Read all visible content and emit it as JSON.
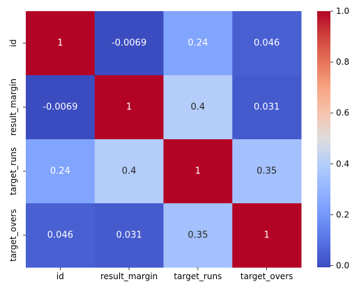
{
  "chart_data": {
    "type": "heatmap",
    "x_categories": [
      "id",
      "result_margin",
      "target_runs",
      "target_overs"
    ],
    "y_categories": [
      "id",
      "result_margin",
      "target_runs",
      "target_overs"
    ],
    "matrix": [
      [
        1,
        -0.0069,
        0.24,
        0.046
      ],
      [
        -0.0069,
        1,
        0.4,
        0.031
      ],
      [
        0.24,
        0.4,
        1,
        0.35
      ],
      [
        0.046,
        0.031,
        0.35,
        1
      ]
    ],
    "annotations": [
      [
        "1",
        "-0.0069",
        "0.24",
        "0.046"
      ],
      [
        "-0.0069",
        "1",
        "0.4",
        "0.031"
      ],
      [
        "0.24",
        "0.4",
        "1",
        "0.35"
      ],
      [
        "0.046",
        "0.031",
        "0.35",
        "1"
      ]
    ],
    "colormap": "coolwarm",
    "colorbar": {
      "vmin": -0.0069,
      "vmax": 1,
      "ticks": [
        0.0,
        0.2,
        0.4,
        0.6,
        0.8,
        1.0
      ],
      "tick_labels": [
        "0.0",
        "0.2",
        "0.4",
        "0.6",
        "0.8",
        "1.0"
      ]
    },
    "title": "",
    "xlabel": "",
    "ylabel": ""
  }
}
